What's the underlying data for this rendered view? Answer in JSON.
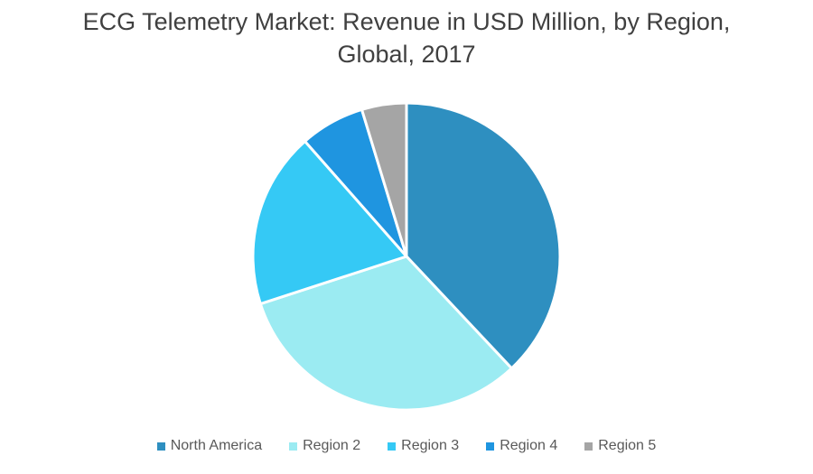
{
  "chart_data": {
    "type": "pie",
    "title_line1": "ECG Telemetry Market: Revenue in USD Million, by Region,",
    "title_line2": "Global, 2017",
    "legend_position": "bottom",
    "slices": [
      {
        "name": "North America",
        "value": 38,
        "color": "#2E8FC0"
      },
      {
        "name": "Region 2",
        "value": 32,
        "color": "#9BEBF2"
      },
      {
        "name": "Region 3",
        "value": 18.5,
        "color": "#35C9F5"
      },
      {
        "name": "Region 4",
        "value": 6.8,
        "color": "#1F95E0"
      },
      {
        "name": "Region 5",
        "value": 4.7,
        "color": "#A5A5A5"
      }
    ]
  }
}
